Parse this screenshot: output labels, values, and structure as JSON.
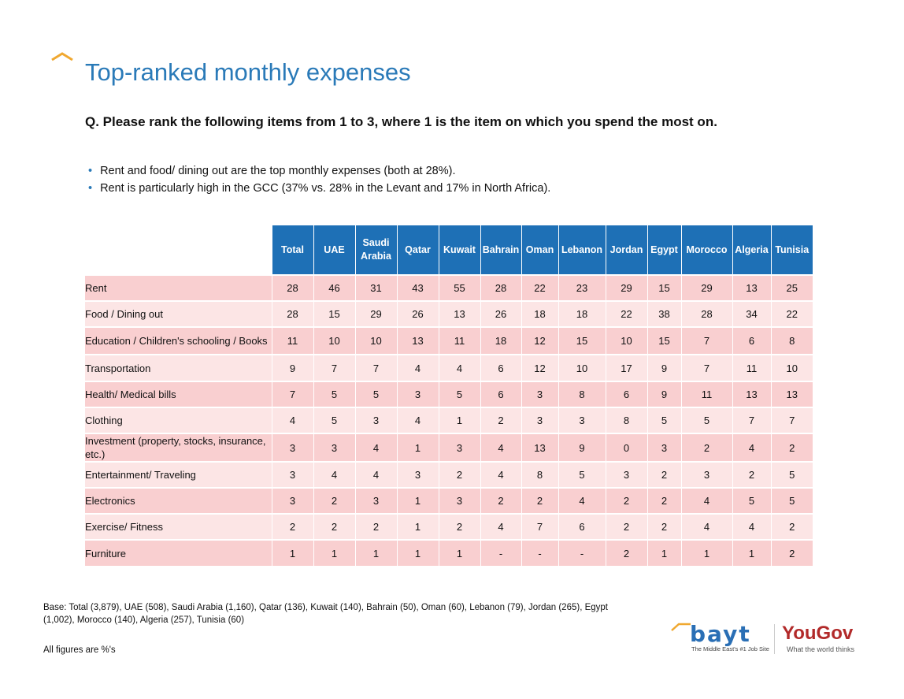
{
  "title": "Top-ranked monthly expenses",
  "question": "Q. Please rank the following items from 1 to 3, where 1 is the item on which you spend the most on.",
  "bullets": [
    "Rent and food/ dining out are the top monthly expenses (both at 28%).",
    "Rent is particularly high in the GCC (37% vs. 28% in the Levant and 17% in North Africa)."
  ],
  "table": {
    "columns": [
      "Total",
      "UAE",
      "Saudi Arabia",
      "Qatar",
      "Kuwait",
      "Bahrain",
      "Oman",
      "Lebanon",
      "Jordan",
      "Egypt",
      "Morocco",
      "Algeria",
      "Tunisia"
    ],
    "rows": [
      {
        "label": "Rent",
        "values": [
          "28",
          "46",
          "31",
          "43",
          "55",
          "28",
          "22",
          "23",
          "29",
          "15",
          "29",
          "13",
          "25"
        ]
      },
      {
        "label": "Food / Dining out",
        "values": [
          "28",
          "15",
          "29",
          "26",
          "13",
          "26",
          "18",
          "18",
          "22",
          "38",
          "28",
          "34",
          "22"
        ]
      },
      {
        "label": "Education / Children's schooling / Books",
        "values": [
          "11",
          "10",
          "10",
          "13",
          "11",
          "18",
          "12",
          "15",
          "10",
          "15",
          "7",
          "6",
          "8"
        ]
      },
      {
        "label": "Transportation",
        "values": [
          "9",
          "7",
          "7",
          "4",
          "4",
          "6",
          "12",
          "10",
          "17",
          "9",
          "7",
          "11",
          "10"
        ]
      },
      {
        "label": "Health/ Medical bills",
        "values": [
          "7",
          "5",
          "5",
          "3",
          "5",
          "6",
          "3",
          "8",
          "6",
          "9",
          "11",
          "13",
          "13"
        ]
      },
      {
        "label": "Clothing",
        "values": [
          "4",
          "5",
          "3",
          "4",
          "1",
          "2",
          "3",
          "3",
          "8",
          "5",
          "5",
          "7",
          "7"
        ]
      },
      {
        "label": "Investment (property, stocks, insurance, etc.)",
        "values": [
          "3",
          "3",
          "4",
          "1",
          "3",
          "4",
          "13",
          "9",
          "0",
          "3",
          "2",
          "4",
          "2"
        ]
      },
      {
        "label": "Entertainment/ Traveling",
        "values": [
          "3",
          "4",
          "4",
          "3",
          "2",
          "4",
          "8",
          "5",
          "3",
          "2",
          "3",
          "2",
          "5"
        ]
      },
      {
        "label": "Electronics",
        "values": [
          "3",
          "2",
          "3",
          "1",
          "3",
          "2",
          "2",
          "4",
          "2",
          "2",
          "4",
          "5",
          "5"
        ]
      },
      {
        "label": "Exercise/ Fitness",
        "values": [
          "2",
          "2",
          "2",
          "1",
          "2",
          "4",
          "7",
          "6",
          "2",
          "2",
          "4",
          "4",
          "2"
        ]
      },
      {
        "label": "Furniture",
        "values": [
          "1",
          "1",
          "1",
          "1",
          "1",
          "-",
          "-",
          "-",
          "2",
          "1",
          "1",
          "1",
          "2"
        ]
      }
    ]
  },
  "base": "Base:  Total (3,879), UAE (508), Saudi Arabia (1,160), Qatar (136), Kuwait (140), Bahrain (50), Oman (60), Lebanon (79), Jordan (265), Egypt (1,002), Morocco (140), Algeria (257), Tunisia (60)",
  "figures_note": "All figures are %'s",
  "logos": {
    "bayt": "bayt",
    "bayt_tagline": "The Middle East's #1 Job Site",
    "yougov": "YouGov",
    "yougov_tagline": "What the world thinks"
  },
  "colors": {
    "accent": "#2a7ab8",
    "header": "#1e70b6",
    "row_dark": "#f9cfd0",
    "row_light": "#fce5e5",
    "caret": "#f0a830",
    "yougov": "#b22a2a"
  }
}
